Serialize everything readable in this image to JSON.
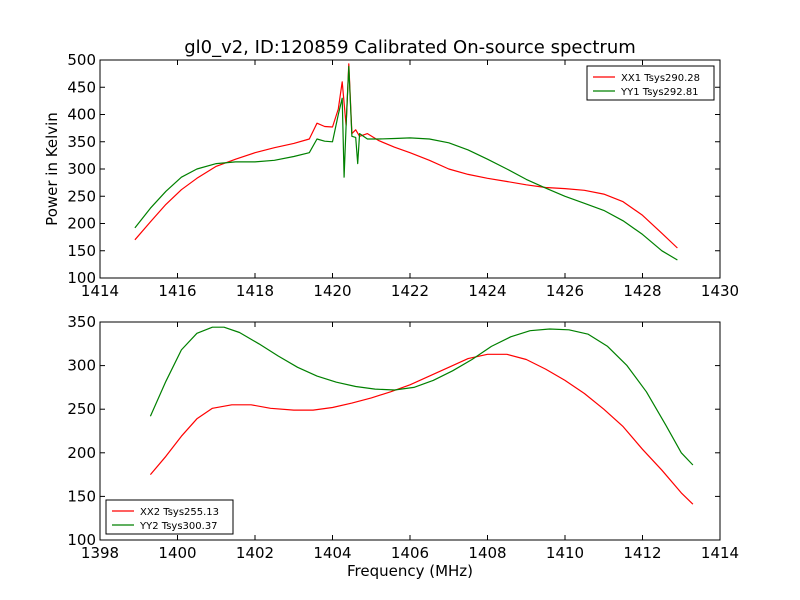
{
  "title": "gl0_v2, ID:120859 Calibrated On-source spectrum",
  "colors": {
    "red": "#ff0000",
    "green": "#008000"
  },
  "chart_data": [
    {
      "type": "line",
      "title": "gl0_v2, ID:120859 Calibrated On-source spectrum",
      "xlabel": "",
      "ylabel": "Power in Kelvin",
      "xlim": [
        1414,
        1430
      ],
      "ylim": [
        100,
        500
      ],
      "xticks": [
        1414,
        1416,
        1418,
        1420,
        1422,
        1424,
        1426,
        1428,
        1430
      ],
      "yticks": [
        100,
        150,
        200,
        250,
        300,
        350,
        400,
        450,
        500
      ],
      "grid": false,
      "legend_position": "top-right",
      "series": [
        {
          "name": "XX1 Tsys290.28",
          "color": "#ff0000",
          "x": [
            1414.9,
            1415.3,
            1415.7,
            1416.1,
            1416.5,
            1417.0,
            1417.5,
            1418.0,
            1418.5,
            1419.0,
            1419.4,
            1419.6,
            1419.8,
            1420.0,
            1420.15,
            1420.25,
            1420.35,
            1420.42,
            1420.5,
            1420.6,
            1420.7,
            1420.9,
            1421.2,
            1421.6,
            1422.0,
            1422.5,
            1423.0,
            1423.5,
            1424.0,
            1424.5,
            1425.0,
            1425.5,
            1426.0,
            1426.5,
            1427.0,
            1427.5,
            1428.0,
            1428.5,
            1428.9
          ],
          "y": [
            170,
            203,
            235,
            262,
            283,
            305,
            318,
            330,
            339,
            347,
            355,
            384,
            378,
            377,
            410,
            460,
            380,
            493,
            365,
            372,
            360,
            365,
            352,
            340,
            330,
            316,
            300,
            290,
            283,
            277,
            271,
            266,
            264,
            261,
            254,
            240,
            215,
            182,
            155
          ]
        },
        {
          "name": "YY1 Tsys292.81",
          "color": "#008000",
          "x": [
            1414.9,
            1415.3,
            1415.7,
            1416.1,
            1416.5,
            1417.0,
            1417.5,
            1418.0,
            1418.5,
            1419.0,
            1419.4,
            1419.6,
            1419.8,
            1420.0,
            1420.15,
            1420.25,
            1420.3,
            1420.35,
            1420.42,
            1420.5,
            1420.6,
            1420.65,
            1420.7,
            1420.9,
            1421.2,
            1421.6,
            1422.0,
            1422.5,
            1423.0,
            1423.5,
            1424.0,
            1424.5,
            1425.0,
            1425.5,
            1426.0,
            1426.5,
            1427.0,
            1427.5,
            1428.0,
            1428.5,
            1428.9
          ],
          "y": [
            192,
            228,
            259,
            285,
            300,
            310,
            313,
            313,
            316,
            323,
            330,
            355,
            351,
            350,
            400,
            430,
            285,
            380,
            488,
            360,
            358,
            310,
            365,
            355,
            355,
            356,
            357,
            355,
            348,
            335,
            318,
            300,
            281,
            265,
            250,
            237,
            224,
            205,
            180,
            150,
            133
          ]
        }
      ]
    },
    {
      "type": "line",
      "title": "",
      "xlabel": "Frequency (MHz)",
      "ylabel": "",
      "xlim": [
        1398,
        1414
      ],
      "ylim": [
        100,
        350
      ],
      "xticks": [
        1398,
        1400,
        1402,
        1404,
        1406,
        1408,
        1410,
        1412,
        1414
      ],
      "yticks": [
        100,
        150,
        200,
        250,
        300,
        350
      ],
      "grid": false,
      "legend_position": "bottom-left",
      "series": [
        {
          "name": "XX2 Tsys255.13",
          "color": "#ff0000",
          "x": [
            1399.3,
            1399.7,
            1400.1,
            1400.5,
            1400.9,
            1401.4,
            1401.9,
            1402.4,
            1403.0,
            1403.5,
            1404.0,
            1404.5,
            1405.0,
            1405.5,
            1406.0,
            1406.5,
            1407.0,
            1407.5,
            1408.0,
            1408.5,
            1409.0,
            1409.5,
            1410.0,
            1410.5,
            1411.0,
            1411.5,
            1412.0,
            1412.5,
            1413.0,
            1413.3
          ],
          "y": [
            175,
            196,
            219,
            239,
            251,
            255,
            255,
            251,
            249,
            249,
            252,
            257,
            263,
            270,
            278,
            288,
            298,
            308,
            313,
            313,
            307,
            296,
            283,
            268,
            250,
            230,
            204,
            180,
            154,
            141
          ]
        },
        {
          "name": "YY2 Tsys300.37",
          "color": "#008000",
          "x": [
            1399.3,
            1399.7,
            1400.1,
            1400.5,
            1400.9,
            1401.2,
            1401.6,
            1402.1,
            1402.6,
            1403.1,
            1403.6,
            1404.1,
            1404.6,
            1405.1,
            1405.6,
            1406.1,
            1406.6,
            1407.1,
            1407.6,
            1408.1,
            1408.6,
            1409.1,
            1409.6,
            1410.1,
            1410.6,
            1411.1,
            1411.6,
            1412.1,
            1412.6,
            1413.0,
            1413.3
          ],
          "y": [
            242,
            282,
            318,
            337,
            344,
            344,
            338,
            325,
            311,
            298,
            288,
            281,
            276,
            273,
            272,
            275,
            283,
            294,
            307,
            322,
            333,
            340,
            342,
            341,
            336,
            322,
            300,
            270,
            232,
            200,
            186
          ]
        }
      ]
    }
  ]
}
